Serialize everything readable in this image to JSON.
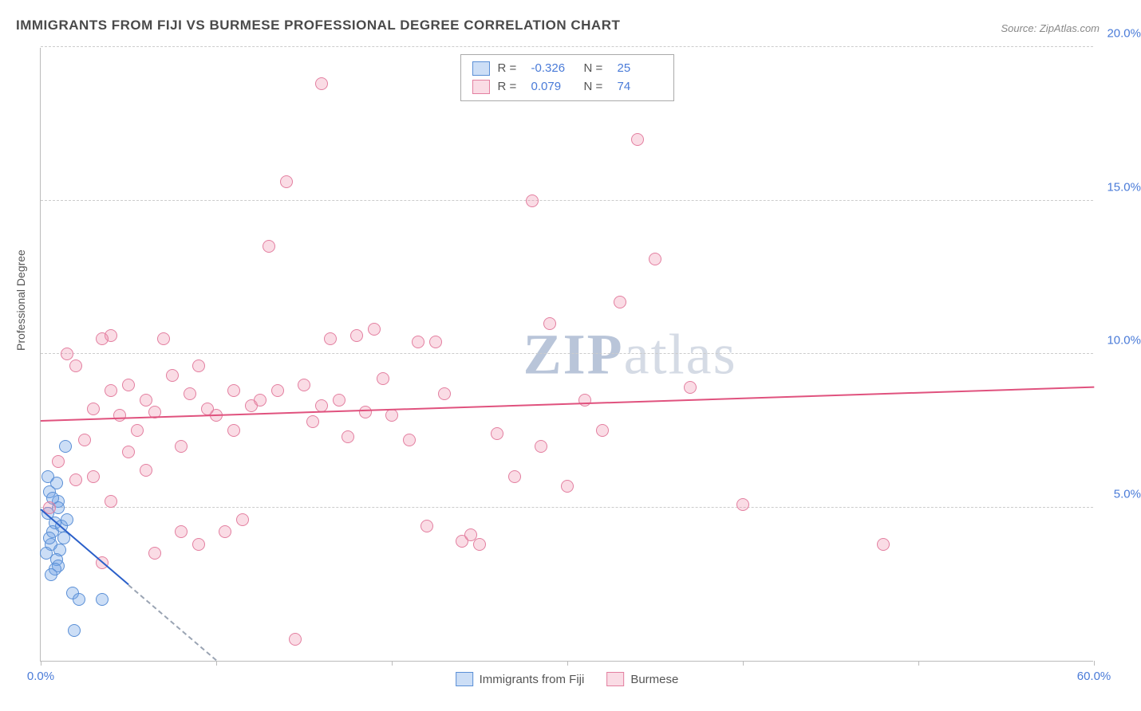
{
  "title": "IMMIGRANTS FROM FIJI VS BURMESE PROFESSIONAL DEGREE CORRELATION CHART",
  "source": "Source: ZipAtlas.com",
  "yaxis_title": "Professional Degree",
  "watermark_a": "ZIP",
  "watermark_b": "atlas",
  "chart": {
    "type": "scatter",
    "xlim": [
      0,
      60
    ],
    "ylim": [
      0,
      20
    ],
    "background_color": "#ffffff",
    "grid_color": "#cccccc",
    "x_ticks": [
      0,
      10,
      20,
      30,
      40,
      50,
      60
    ],
    "x_tick_labels": {
      "0": "0.0%",
      "60": "60.0%"
    },
    "y_gridlines": [
      5,
      10,
      15,
      20
    ],
    "y_tick_labels": {
      "5": "5.0%",
      "10": "10.0%",
      "15": "15.0%",
      "20": "20.0%"
    },
    "marker_radius": 8,
    "series": [
      {
        "name": "Immigrants from Fiji",
        "fill": "rgba(110,160,230,0.35)",
        "stroke": "#5a8fd6",
        "R": "-0.326",
        "N": "25",
        "trend": {
          "color": "#2a5fc9",
          "y_at_x0": 4.9,
          "y_at_x10": 0.0,
          "dashed_after_x": 5
        },
        "points": [
          [
            0.8,
            4.5
          ],
          [
            0.9,
            5.8
          ],
          [
            0.5,
            5.5
          ],
          [
            1.0,
            5.2
          ],
          [
            0.4,
            4.8
          ],
          [
            0.7,
            4.2
          ],
          [
            1.3,
            4.0
          ],
          [
            0.6,
            3.8
          ],
          [
            1.1,
            3.6
          ],
          [
            0.3,
            3.5
          ],
          [
            0.9,
            3.3
          ],
          [
            1.0,
            3.1
          ],
          [
            1.2,
            4.4
          ],
          [
            0.5,
            4.0
          ],
          [
            0.8,
            3.0
          ],
          [
            0.6,
            2.8
          ],
          [
            1.4,
            7.0
          ],
          [
            0.4,
            6.0
          ],
          [
            1.8,
            2.2
          ],
          [
            2.2,
            2.0
          ],
          [
            3.5,
            2.0
          ],
          [
            1.9,
            1.0
          ],
          [
            1.0,
            5.0
          ],
          [
            1.5,
            4.6
          ],
          [
            0.7,
            5.3
          ]
        ]
      },
      {
        "name": "Burmese",
        "fill": "rgba(240,140,170,0.30)",
        "stroke": "#e37fa0",
        "R": "0.079",
        "N": "74",
        "trend": {
          "color": "#e0527e",
          "y_at_x0": 7.8,
          "y_at_x60": 8.9
        },
        "points": [
          [
            2.0,
            9.6
          ],
          [
            3.0,
            8.2
          ],
          [
            4.0,
            10.6
          ],
          [
            5.0,
            9.0
          ],
          [
            6.0,
            8.5
          ],
          [
            7.0,
            10.5
          ],
          [
            8.0,
            7.0
          ],
          [
            9.0,
            9.6
          ],
          [
            10.0,
            8.0
          ],
          [
            10.5,
            4.2
          ],
          [
            11.0,
            7.5
          ],
          [
            12.0,
            8.3
          ],
          [
            13.0,
            13.5
          ],
          [
            14.0,
            15.6
          ],
          [
            15.0,
            9.0
          ],
          [
            16.0,
            18.8
          ],
          [
            16.5,
            10.5
          ],
          [
            17.0,
            8.5
          ],
          [
            17.5,
            7.3
          ],
          [
            18.0,
            10.6
          ],
          [
            19.0,
            10.8
          ],
          [
            20.0,
            8.0
          ],
          [
            21.0,
            7.2
          ],
          [
            22.0,
            4.4
          ],
          [
            22.5,
            10.4
          ],
          [
            23.0,
            8.7
          ],
          [
            24.0,
            3.9
          ],
          [
            25.0,
            3.8
          ],
          [
            26.0,
            7.4
          ],
          [
            27.0,
            6.0
          ],
          [
            28.0,
            15.0
          ],
          [
            29.0,
            11.0
          ],
          [
            30.0,
            5.7
          ],
          [
            31.0,
            8.5
          ],
          [
            32.0,
            7.5
          ],
          [
            33.0,
            11.7
          ],
          [
            34.0,
            17.0
          ],
          [
            35.0,
            13.1
          ],
          [
            37.0,
            8.9
          ],
          [
            40.0,
            5.1
          ],
          [
            48.0,
            3.8
          ],
          [
            14.5,
            0.7
          ],
          [
            4.5,
            8.0
          ],
          [
            5.5,
            7.5
          ],
          [
            6.5,
            8.1
          ],
          [
            7.5,
            9.3
          ],
          [
            2.5,
            7.2
          ],
          [
            3.5,
            10.5
          ],
          [
            8.5,
            8.7
          ],
          [
            9.5,
            8.2
          ],
          [
            11.5,
            4.6
          ],
          [
            12.5,
            8.5
          ],
          [
            1.5,
            10.0
          ],
          [
            18.5,
            8.1
          ],
          [
            24.5,
            4.1
          ],
          [
            0.5,
            5.0
          ],
          [
            1.0,
            6.5
          ],
          [
            2.0,
            5.9
          ],
          [
            3.0,
            6.0
          ],
          [
            4.0,
            5.2
          ],
          [
            5.0,
            6.8
          ],
          [
            6.0,
            6.2
          ],
          [
            19.5,
            9.2
          ],
          [
            21.5,
            10.4
          ],
          [
            13.5,
            8.8
          ],
          [
            15.5,
            7.8
          ],
          [
            16.0,
            8.3
          ],
          [
            28.5,
            7.0
          ],
          [
            8.0,
            4.2
          ],
          [
            9.0,
            3.8
          ],
          [
            6.5,
            3.5
          ],
          [
            3.5,
            3.2
          ],
          [
            4.0,
            8.8
          ],
          [
            11.0,
            8.8
          ]
        ]
      }
    ]
  },
  "bottom_legend": [
    {
      "swatch_fill": "rgba(110,160,230,0.35)",
      "swatch_stroke": "#5a8fd6",
      "label": "Immigrants from Fiji"
    },
    {
      "swatch_fill": "rgba(240,140,170,0.30)",
      "swatch_stroke": "#e37fa0",
      "label": "Burmese"
    }
  ]
}
